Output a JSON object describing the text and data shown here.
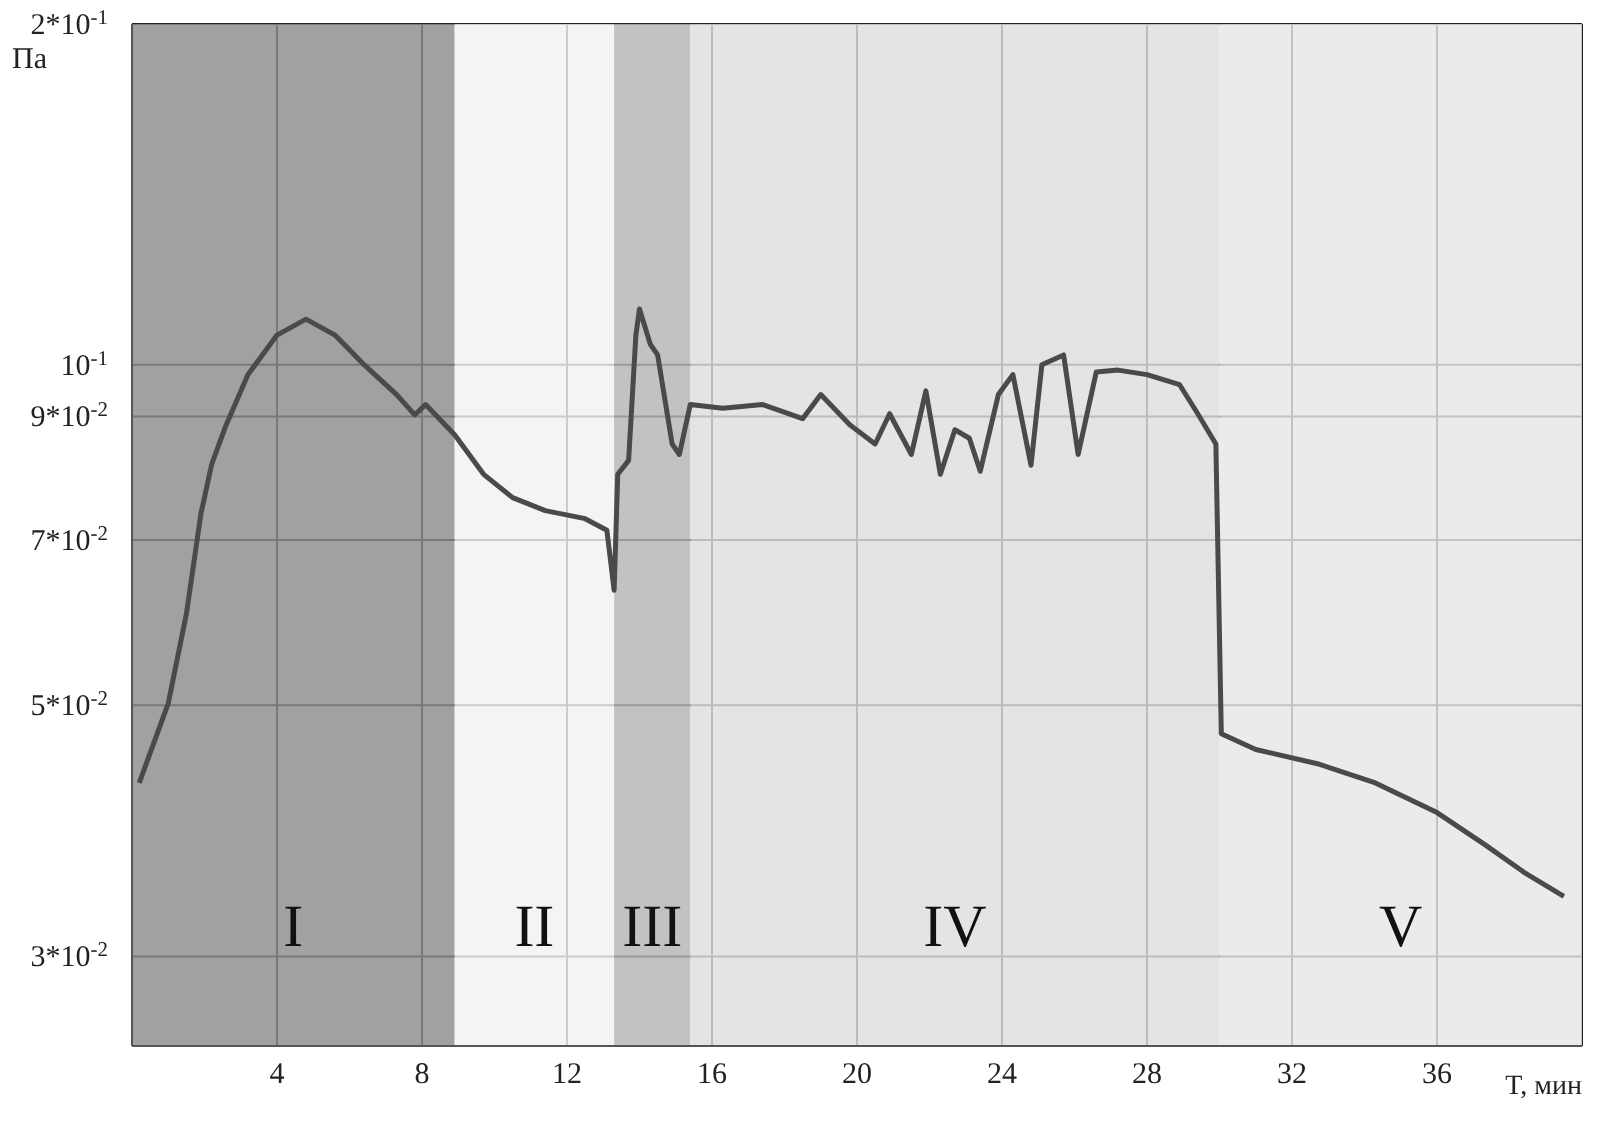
{
  "chart_data": {
    "type": "line",
    "xlabel": "T, мин",
    "ylabel": "Па",
    "log": "y",
    "grid": true,
    "marker": "none",
    "line_style": "solid",
    "xlim": [
      0,
      40
    ],
    "xticks": [
      4,
      8,
      12,
      16,
      20,
      24,
      28,
      32,
      36
    ],
    "ylim": [
      0.025,
      0.2
    ],
    "yticks": [
      {
        "value": 0.03,
        "label": "3*10$^{-2}$"
      },
      {
        "value": 0.05,
        "label": "5*10$^{-2}$"
      },
      {
        "value": 0.07,
        "label": "7*10$^{-2}$"
      },
      {
        "value": 0.09,
        "label": "9*10$^{-2}$"
      },
      {
        "value": 0.1,
        "label": "10$^{-1}$"
      },
      {
        "value": 0.2,
        "label": "2*10$^{-1}$"
      }
    ],
    "bands": [
      {
        "axis": "x",
        "from": 0,
        "to": 8.9,
        "label": "I",
        "color": "#8c8c8c"
      },
      {
        "axis": "x",
        "from": 8.9,
        "to": 13.3,
        "label": "II",
        "color": "#f2f2f2"
      },
      {
        "axis": "x",
        "from": 13.3,
        "to": 15.4,
        "label": "III",
        "color": "#b4b4b4"
      },
      {
        "axis": "x",
        "from": 15.4,
        "to": 30,
        "label": "IV",
        "color": "#dedede"
      },
      {
        "axis": "x",
        "from": 30,
        "to": 40,
        "label": "V",
        "color": "#e6e6e6"
      }
    ],
    "series": [
      {
        "color": "#4a4a4a",
        "x": [
          0.2,
          1.0,
          1.5,
          1.9,
          2.2,
          2.6,
          3.2,
          4.0,
          4.8,
          5.6,
          6.4,
          7.3,
          7.8,
          8.1,
          8.9,
          9.7,
          10.5,
          11.4,
          12.5,
          13.1,
          13.3,
          13.4,
          13.7,
          13.9,
          14.0,
          14.3,
          14.5,
          14.9,
          15.1,
          15.4,
          16.3,
          17.4,
          18.5,
          19.0,
          19.8,
          20.5,
          20.9,
          21.5,
          21.9,
          22.3,
          22.7,
          23.1,
          23.4,
          23.9,
          24.3,
          24.8,
          25.1,
          25.7,
          26.1,
          26.6,
          27.2,
          28.0,
          28.9,
          29.4,
          29.9,
          30.05,
          31.0,
          32.7,
          34.3,
          36.0,
          37.3,
          38.4,
          39.5
        ],
        "values": [
          0.0427,
          0.0502,
          0.0602,
          0.0738,
          0.0817,
          0.0885,
          0.098,
          0.1062,
          0.1097,
          0.1062,
          0.1,
          0.0941,
          0.0903,
          0.0922,
          0.0867,
          0.08,
          0.0763,
          0.0743,
          0.0731,
          0.0714,
          0.0632,
          0.08,
          0.0823,
          0.1062,
          0.112,
          0.1042,
          0.102,
          0.0851,
          0.0833,
          0.0922,
          0.0915,
          0.0922,
          0.0896,
          0.0941,
          0.0885,
          0.0851,
          0.0905,
          0.0833,
          0.0948,
          0.08,
          0.0876,
          0.0861,
          0.0805,
          0.0941,
          0.098,
          0.0815,
          0.1,
          0.102,
          0.0833,
          0.0985,
          0.0989,
          0.098,
          0.096,
          0.0905,
          0.0851,
          0.0472,
          0.0457,
          0.0444,
          0.0427,
          0.0402,
          0.0377,
          0.0356,
          0.0339
        ]
      }
    ]
  }
}
